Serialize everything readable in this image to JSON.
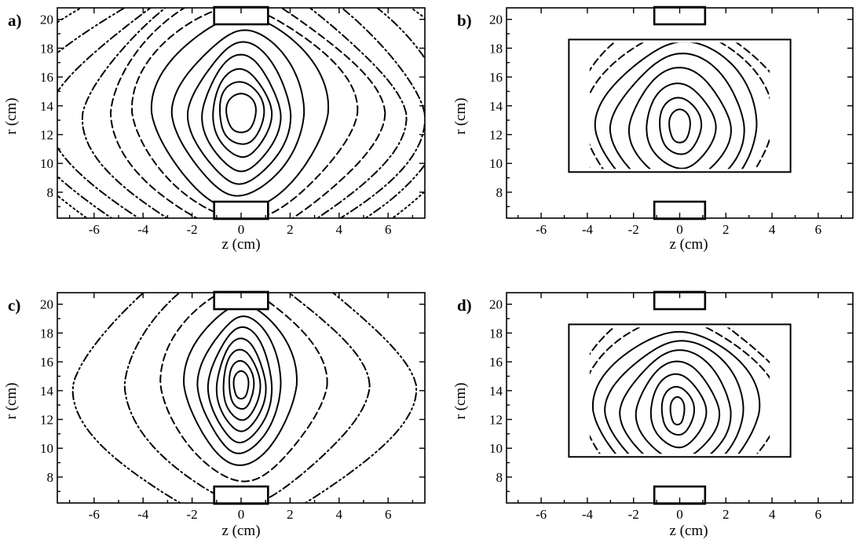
{
  "chart_data": [
    {
      "panel": "a)",
      "type": "contour",
      "xlabel": "z (cm)",
      "ylabel": "r (cm)",
      "xlim": [
        -7.5,
        7.5
      ],
      "ylim": [
        6.2,
        20.8
      ],
      "xticks": [
        -6,
        -4,
        -2,
        0,
        2,
        4,
        6
      ],
      "yticks": [
        8,
        10,
        12,
        14,
        16,
        18,
        20
      ],
      "measurement_region": null,
      "center": [
        0.0,
        13.5
      ],
      "levels": [
        {
          "style": "solid",
          "rz": 0.6,
          "rr": 1.4,
          "pinch": 0.0
        },
        {
          "style": "solid",
          "rz": 0.9,
          "rr": 2.2,
          "pinch": 0.0
        },
        {
          "style": "solid",
          "rz": 1.2,
          "rr": 3.0,
          "pinch": 0.25
        },
        {
          "style": "solid",
          "rz": 1.6,
          "rr": 3.9,
          "pinch": 0.35
        },
        {
          "style": "solid",
          "rz": 2.1,
          "rr": 4.8,
          "pinch": 0.45
        },
        {
          "style": "solid",
          "rz": 2.7,
          "rr": 5.8,
          "pinch": 0.5
        },
        {
          "style": "solid",
          "rz": 3.6,
          "rr": 7.0,
          "pinch": 0.55
        },
        {
          "style": "dashed",
          "rz": 4.6,
          "rr": 7.6,
          "pinch": 0.6
        },
        {
          "style": "dashed",
          "rz": 5.6,
          "rr": 8.4,
          "pinch": 0.62
        },
        {
          "style": "dash-dot",
          "rz": 6.6,
          "rr": 9.2,
          "pinch": 0.64
        },
        {
          "style": "dash-dot",
          "rz": 7.7,
          "rr": 10.0,
          "pinch": 0.66
        },
        {
          "style": "dash-dot-dot",
          "rz": 8.8,
          "rr": 11.0,
          "pinch": 0.68
        },
        {
          "style": "dotted",
          "rz": 10.0,
          "rr": 12.0,
          "pinch": 0.7
        }
      ]
    },
    {
      "panel": "b)",
      "type": "contour",
      "xlabel": "z (cm)",
      "ylabel": "r (cm)",
      "xlim": [
        -7.5,
        7.5
      ],
      "ylim": [
        6.2,
        20.8
      ],
      "xticks": [
        -6,
        -4,
        -2,
        0,
        2,
        4,
        6
      ],
      "yticks": [
        8,
        10,
        12,
        14,
        16,
        18,
        20
      ],
      "measurement_region": {
        "z": [
          -4.8,
          4.8
        ],
        "r": [
          9.4,
          18.6
        ]
      },
      "clip_z": [
        -3.9,
        3.9
      ],
      "center": [
        0.0,
        12.6
      ],
      "levels": [
        {
          "style": "solid",
          "rz": 0.45,
          "rr": 1.2,
          "pinch": 0.0
        },
        {
          "style": "solid",
          "rz": 0.9,
          "rr": 2.0,
          "pinch": 0.1
        },
        {
          "style": "solid",
          "rz": 1.5,
          "rr": 2.9,
          "pinch": 0.2
        },
        {
          "style": "solid",
          "rz": 2.2,
          "rr": 3.9,
          "pinch": 0.3
        },
        {
          "style": "solid",
          "rz": 2.9,
          "rr": 4.9,
          "pinch": 0.35
        },
        {
          "style": "solid",
          "rz": 3.5,
          "rr": 5.9,
          "pinch": 0.4
        },
        {
          "style": "dashed",
          "rz": 4.1,
          "rr": 6.9,
          "pinch": 0.45
        },
        {
          "style": "dashed",
          "rz": 4.7,
          "rr": 7.9,
          "pinch": 0.5
        }
      ]
    },
    {
      "panel": "c)",
      "type": "contour",
      "xlabel": "z (cm)",
      "ylabel": "r (cm)",
      "xlim": [
        -7.5,
        7.5
      ],
      "ylim": [
        6.2,
        20.8
      ],
      "xticks": [
        -6,
        -4,
        -2,
        0,
        2,
        4,
        6
      ],
      "yticks": [
        8,
        10,
        12,
        14,
        16,
        18,
        20
      ],
      "measurement_region": null,
      "center": [
        0.0,
        14.4
      ],
      "levels": [
        {
          "style": "solid",
          "rz": 0.3,
          "rr": 1.0,
          "pinch": 0.0
        },
        {
          "style": "solid",
          "rz": 0.5,
          "rr": 1.7,
          "pinch": 0.0
        },
        {
          "style": "solid",
          "rz": 0.75,
          "rr": 2.4,
          "pinch": 0.1
        },
        {
          "style": "solid",
          "rz": 1.0,
          "rr": 3.1,
          "pinch": 0.2
        },
        {
          "style": "solid",
          "rz": 1.3,
          "rr": 3.9,
          "pinch": 0.3
        },
        {
          "style": "solid",
          "rz": 1.7,
          "rr": 4.8,
          "pinch": 0.45
        },
        {
          "style": "solid",
          "rz": 2.3,
          "rr": 5.8,
          "pinch": 0.55
        },
        {
          "style": "dashed",
          "rz": 3.4,
          "rr": 6.9,
          "pinch": 0.65
        },
        {
          "style": "dash-dot",
          "rz": 5.0,
          "rr": 8.2,
          "pinch": 0.7
        },
        {
          "style": "dash-dot-dot",
          "rz": 7.0,
          "rr": 9.6,
          "pinch": 0.72
        }
      ]
    },
    {
      "panel": "d)",
      "type": "contour",
      "xlabel": "z (cm)",
      "ylabel": "r (cm)",
      "xlim": [
        -7.5,
        7.5
      ],
      "ylim": [
        6.2,
        20.8
      ],
      "xticks": [
        -6,
        -4,
        -2,
        0,
        2,
        4,
        6
      ],
      "yticks": [
        8,
        10,
        12,
        14,
        16,
        18,
        20
      ],
      "measurement_region": {
        "z": [
          -4.8,
          4.8
        ],
        "r": [
          9.4,
          18.6
        ]
      },
      "clip_z": [
        -3.9,
        3.9
      ],
      "center": [
        -0.1,
        12.6
      ],
      "levels": [
        {
          "style": "solid",
          "rz": 0.3,
          "rr": 1.0,
          "pinch": 0.0
        },
        {
          "style": "solid",
          "rz": 0.7,
          "rr": 1.7,
          "pinch": 0.1
        },
        {
          "style": "solid",
          "rz": 1.2,
          "rr": 2.5,
          "pinch": 0.2
        },
        {
          "style": "solid",
          "rz": 1.8,
          "rr": 3.3,
          "pinch": 0.3
        },
        {
          "style": "solid",
          "rz": 2.4,
          "rr": 4.1,
          "pinch": 0.35
        },
        {
          "style": "solid",
          "rz": 3.0,
          "rr": 4.9,
          "pinch": 0.4
        },
        {
          "style": "solid",
          "rz": 3.6,
          "rr": 5.7,
          "pinch": 0.45
        },
        {
          "style": "dashed",
          "rz": 4.3,
          "rr": 6.6,
          "pinch": 0.5
        },
        {
          "style": "dashed",
          "rz": 5.0,
          "rr": 7.5,
          "pinch": 0.55
        }
      ]
    }
  ]
}
